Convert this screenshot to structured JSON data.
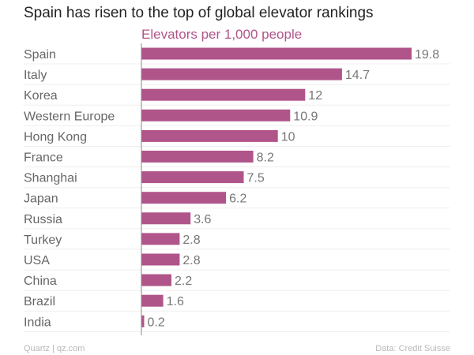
{
  "chart_data": {
    "type": "bar",
    "orientation": "horizontal",
    "title": "Spain has risen to the top of global elevator rankings",
    "subtitle": "Elevators per 1,000 people",
    "categories": [
      "Spain",
      "Italy",
      "Korea",
      "Western Europe",
      "Hong Kong",
      "France",
      "Shanghai",
      "Japan",
      "Russia",
      "Turkey",
      "USA",
      "China",
      "Brazil",
      "India"
    ],
    "values": [
      19.8,
      14.7,
      12,
      10.9,
      10,
      8.2,
      7.5,
      6.2,
      3.6,
      2.8,
      2.8,
      2.2,
      1.6,
      0.2
    ],
    "value_labels": [
      "19.8",
      "14.7",
      "12",
      "10.9",
      "10",
      "8.2",
      "7.5",
      "6.2",
      "3.6",
      "2.8",
      "2.8",
      "2.2",
      "1.6",
      "0.2"
    ],
    "xlim": [
      0,
      20
    ],
    "grid": true,
    "bar_color": "#b0558a",
    "subtitle_color": "#b0558a",
    "source_left": "Quartz | qz.com",
    "source_right": "Data: Credit Suisse"
  }
}
